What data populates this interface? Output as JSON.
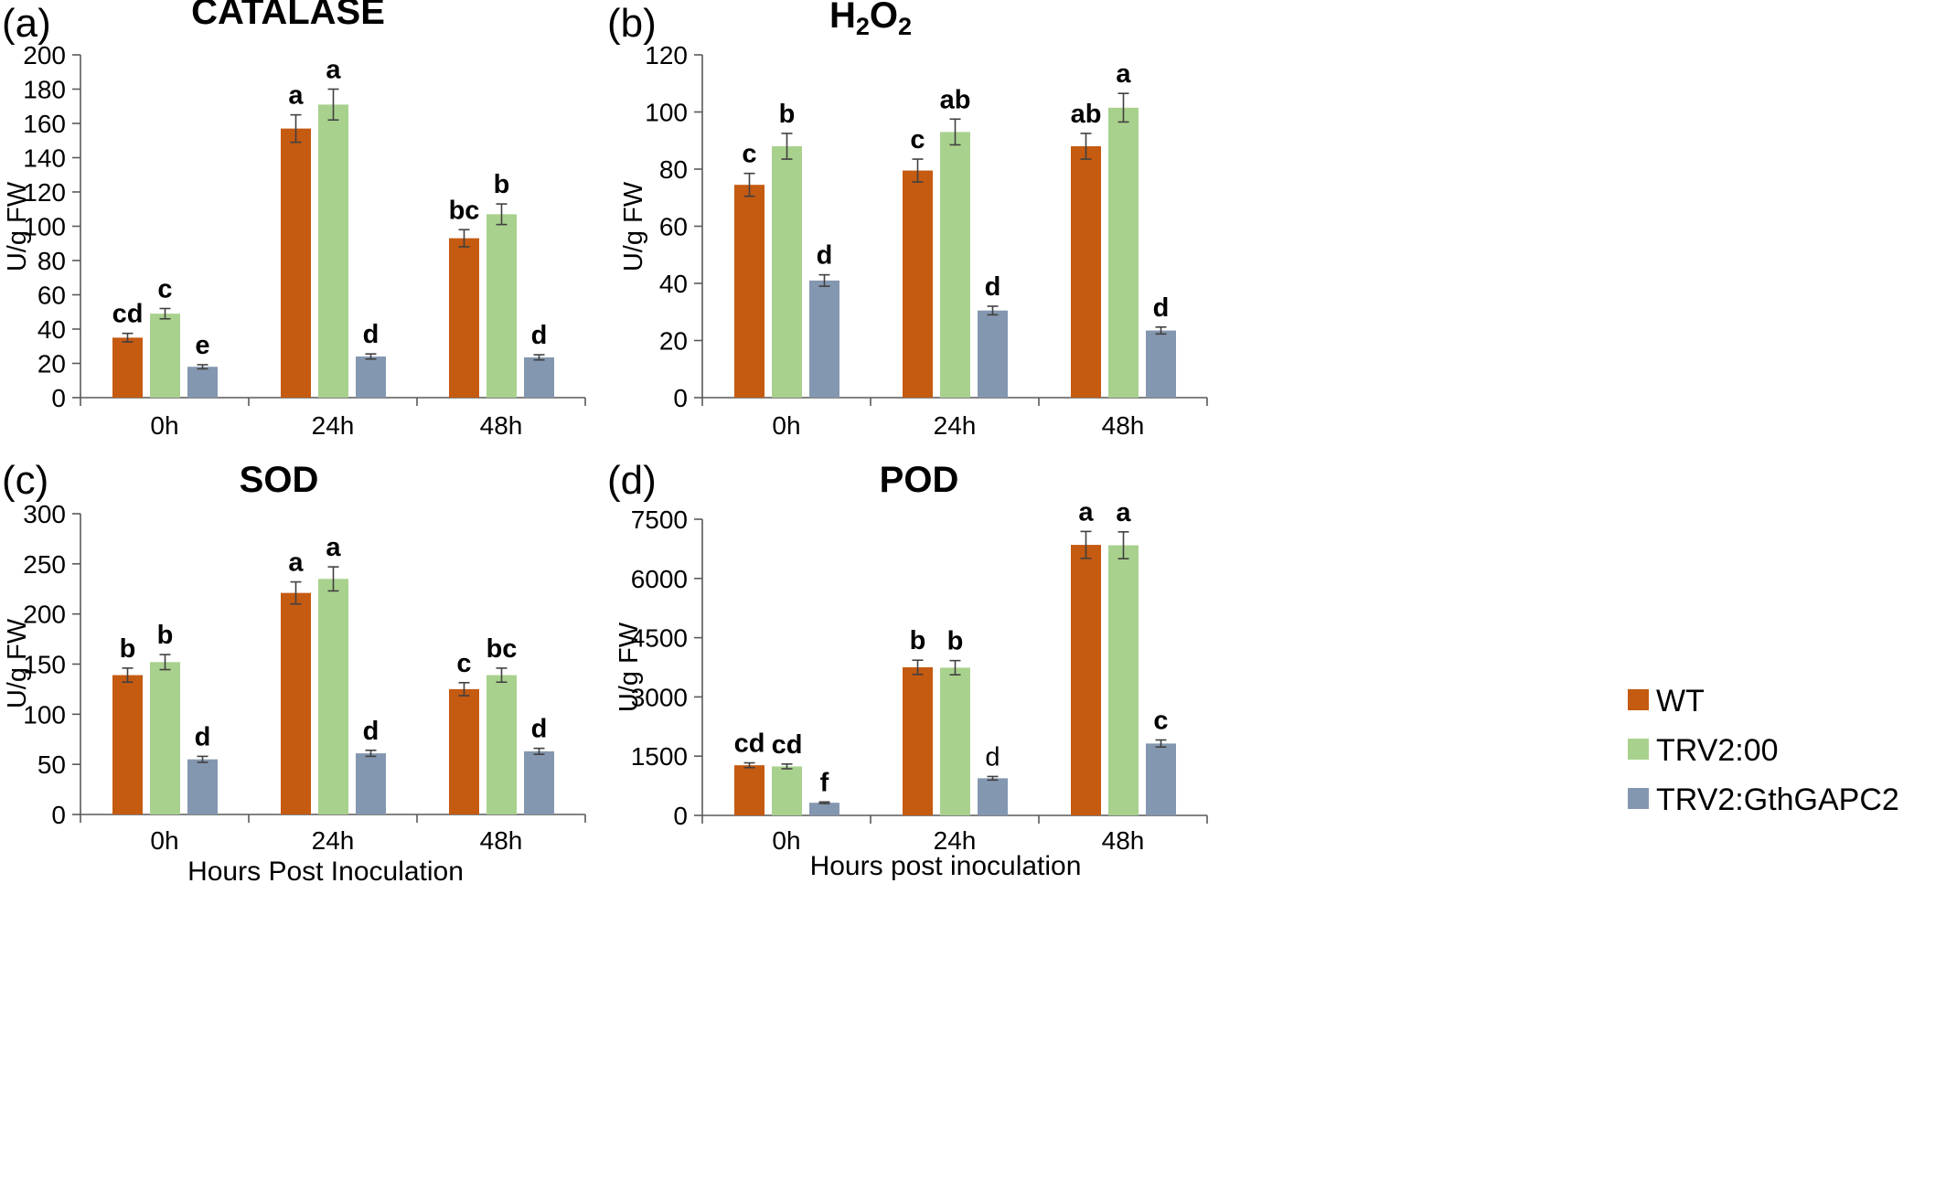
{
  "colors": {
    "WT": "#C55A11",
    "TRV2:00": "#A9D18E",
    "TRV2:GthGAPC2": "#8497B0",
    "axis": "#595959",
    "error": "#404040"
  },
  "legend": {
    "placement": "right",
    "entries": [
      "WT",
      "TRV2:00",
      "TRV2:GthGAPC2"
    ]
  },
  "chart_data": [
    {
      "panel": "(a)",
      "type": "bar",
      "title": "CATALASE",
      "ylabel": "U/g FW",
      "xlabel": "",
      "ylim": [
        0,
        200
      ],
      "yticks": [
        0,
        20,
        40,
        60,
        80,
        100,
        120,
        140,
        160,
        180,
        200
      ],
      "categories": [
        "0h",
        "24h",
        "48h"
      ],
      "series": [
        {
          "name": "WT",
          "values": [
            35,
            157,
            93
          ],
          "errors": [
            2.5,
            8,
            5
          ],
          "letters": [
            "cd",
            "a",
            "bc"
          ]
        },
        {
          "name": "TRV2:00",
          "values": [
            49,
            171,
            107
          ],
          "errors": [
            3,
            9,
            6
          ],
          "letters": [
            "c",
            "a",
            "b"
          ]
        },
        {
          "name": "TRV2:GthGAPC2",
          "values": [
            18,
            24,
            23.5
          ],
          "errors": [
            1.2,
            1.5,
            1.5
          ],
          "letters": [
            "e",
            "d",
            "d"
          ]
        }
      ]
    },
    {
      "panel": "(b)",
      "type": "bar",
      "title": "H2O2",
      "ylabel": "U/g FW",
      "xlabel": "",
      "ylim": [
        0,
        120
      ],
      "yticks": [
        0,
        20,
        40,
        60,
        80,
        100,
        120
      ],
      "categories": [
        "0h",
        "24h",
        "48h"
      ],
      "series": [
        {
          "name": "WT",
          "values": [
            74.5,
            79.5,
            88
          ],
          "errors": [
            4,
            4,
            4.5
          ],
          "letters": [
            "c",
            "c",
            "ab"
          ]
        },
        {
          "name": "TRV2:00",
          "values": [
            88,
            93,
            101.5
          ],
          "errors": [
            4.5,
            4.5,
            5
          ],
          "letters": [
            "b",
            "ab",
            "a"
          ]
        },
        {
          "name": "TRV2:GthGAPC2",
          "values": [
            41,
            30.5,
            23.5
          ],
          "errors": [
            2,
            1.5,
            1.2
          ],
          "letters": [
            "d",
            "d",
            "d"
          ]
        }
      ]
    },
    {
      "panel": "(c)",
      "type": "bar",
      "title": "SOD",
      "ylabel": "U/g FW",
      "xlabel": "Hours Post Inoculation",
      "ylim": [
        0,
        300
      ],
      "yticks": [
        0,
        50,
        100,
        150,
        200,
        250,
        300
      ],
      "categories": [
        "0h",
        "24h",
        "48h"
      ],
      "series": [
        {
          "name": "WT",
          "values": [
            139,
            221,
            125
          ],
          "errors": [
            7,
            11,
            6.5
          ],
          "letters": [
            "b",
            "a",
            "c"
          ]
        },
        {
          "name": "TRV2:00",
          "values": [
            152,
            235,
            139
          ],
          "errors": [
            7.5,
            12,
            7
          ],
          "letters": [
            "b",
            "a",
            "bc"
          ]
        },
        {
          "name": "TRV2:GthGAPC2",
          "values": [
            55,
            61,
            63
          ],
          "errors": [
            3,
            3,
            3
          ],
          "letters": [
            "d",
            "d",
            "d"
          ]
        }
      ]
    },
    {
      "panel": "(d)",
      "type": "bar",
      "title": "POD",
      "ylabel": "U/g FW",
      "xlabel": "Hours post inoculation",
      "ylim": [
        0,
        7500
      ],
      "yticks": [
        0,
        1500,
        3000,
        4500,
        6000,
        7500
      ],
      "categories": [
        "0h",
        "24h",
        "48h"
      ],
      "series": [
        {
          "name": "WT",
          "values": [
            1270,
            3750,
            6850
          ],
          "errors": [
            60,
            180,
            340
          ],
          "letters": [
            "cd",
            "b",
            "a"
          ]
        },
        {
          "name": "TRV2:00",
          "values": [
            1240,
            3740,
            6840
          ],
          "errors": [
            60,
            180,
            340
          ],
          "letters": [
            "cd",
            "b",
            "a"
          ]
        },
        {
          "name": "TRV2:GthGAPC2",
          "values": [
            320,
            940,
            1820
          ],
          "errors": [
            20,
            45,
            90
          ],
          "letters": [
            "f",
            "d",
            "c"
          ],
          "plain_letters": [
            false,
            true,
            false
          ]
        }
      ]
    }
  ]
}
